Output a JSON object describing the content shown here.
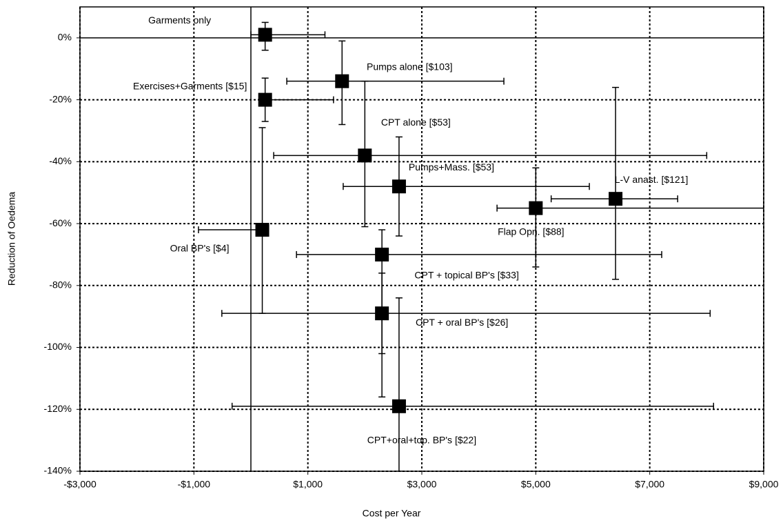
{
  "chart_data": {
    "type": "scatter",
    "x_label": "Cost per Year",
    "y_label": "Reduction of Oedema",
    "labels": [
      "Garments only",
      "Pumps alone [$103]",
      "Exercises+Garments [$15]",
      "CPT alone [$53]",
      "Pumps+Mass. [$53]",
      "L-V anast. [$121]",
      "Flap Opn. [$88]",
      "Oral BP's [$4]",
      "CPT + topical BP's [$33]",
      "CPT + oral BP's [$26]",
      "CPT+oral+top. BP's [$22]"
    ],
    "x": [
      250,
      1600,
      250,
      2000,
      2600,
      6400,
      5000,
      200,
      2300,
      2300,
      2600
    ],
    "y": [
      1,
      -14,
      -20,
      -38,
      -48,
      -52,
      -55,
      -62,
      -70,
      -89,
      -119
    ],
    "x_low": [
      0,
      630,
      250,
      400,
      1620,
      5270,
      4320,
      -920,
      800,
      -510,
      -330
    ],
    "x_high": [
      1300,
      4440,
      1450,
      8000,
      5940,
      7490,
      9000,
      200,
      7210,
      8060,
      8120
    ],
    "y_low": [
      -4,
      -28,
      -27,
      -61,
      -64,
      -78,
      -74,
      -89,
      -102,
      -116,
      -140
    ],
    "y_high": [
      5,
      -1,
      -13,
      -14,
      -32,
      -16,
      -42,
      -29,
      -62,
      -76,
      -84
    ],
    "color": "#000000",
    "xlim": [
      -3000,
      9000
    ],
    "xticks": [
      {
        "value": -3000,
        "label": "-$3,000"
      },
      {
        "value": -1000,
        "label": "-$1,000"
      },
      {
        "value": 1000,
        "label": "$1,000"
      },
      {
        "value": 3000,
        "label": "$3,000"
      },
      {
        "value": 5000,
        "label": "$5,000"
      },
      {
        "value": 7000,
        "label": "$7,000"
      },
      {
        "value": 9000,
        "label": "$9,000"
      }
    ],
    "ylim": [
      -140,
      10
    ],
    "yticks": [
      {
        "value": 0,
        "label": "0%"
      },
      {
        "value": -20,
        "label": "-20%"
      },
      {
        "value": -40,
        "label": "-40%"
      },
      {
        "value": -60,
        "label": "-60%"
      },
      {
        "value": -80,
        "label": "-80%"
      },
      {
        "value": -100,
        "label": "-100%"
      },
      {
        "value": -120,
        "label": "-120%"
      },
      {
        "value": -140,
        "label": "-140%"
      }
    ],
    "grid": true
  }
}
